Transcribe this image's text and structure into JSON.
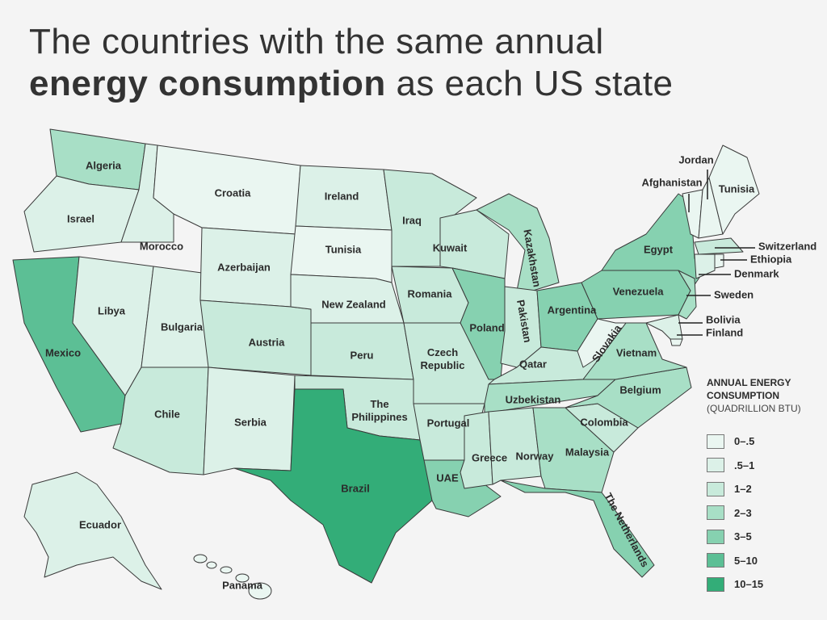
{
  "title": {
    "line1": "The countries with the same annual",
    "line2_bold": "energy consumption",
    "line2_rest": " as each US state"
  },
  "legend": {
    "title_line1": "ANNUAL ENERGY",
    "title_line2": "CONSUMPTION",
    "subtitle": "(QUADRILLION BTU)",
    "bins": [
      {
        "label": "0–.5",
        "color": "#eaf6f1"
      },
      {
        "label": ".5–1",
        "color": "#dcf1e8"
      },
      {
        "label": "1–2",
        "color": "#c8eadb"
      },
      {
        "label": "2–3",
        "color": "#a8dfc6"
      },
      {
        "label": "3–5",
        "color": "#86d1b0"
      },
      {
        "label": "5–10",
        "color": "#5cbf95"
      },
      {
        "label": "10–15",
        "color": "#33ad78"
      }
    ]
  },
  "regions": [
    {
      "country": "Algeria",
      "bin": 3
    },
    {
      "country": "Israel",
      "bin": 1
    },
    {
      "country": "Mexico",
      "bin": 5
    },
    {
      "country": "Morocco",
      "bin": 1
    },
    {
      "country": "Croatia",
      "bin": 0
    },
    {
      "country": "Libya",
      "bin": 1
    },
    {
      "country": "Bulgaria",
      "bin": 1
    },
    {
      "country": "Azerbaijan",
      "bin": 1
    },
    {
      "country": "Austria",
      "bin": 2
    },
    {
      "country": "Chile",
      "bin": 2
    },
    {
      "country": "Serbia",
      "bin": 1
    },
    {
      "country": "Ireland",
      "bin": 1
    },
    {
      "country": "Tunisia",
      "bin": 0
    },
    {
      "country": "New Zealand",
      "bin": 1
    },
    {
      "country": "Peru",
      "bin": 2
    },
    {
      "country": "The Philippines",
      "bin": 2
    },
    {
      "country": "Brazil",
      "bin": 6
    },
    {
      "country": "Iraq",
      "bin": 2
    },
    {
      "country": "Romania",
      "bin": 2
    },
    {
      "country": "Czech Republic",
      "bin": 2
    },
    {
      "country": "Portugal",
      "bin": 2
    },
    {
      "country": "UAE",
      "bin": 4
    },
    {
      "country": "Kuwait",
      "bin": 2
    },
    {
      "country": "Poland",
      "bin": 4
    },
    {
      "country": "Kazakhstan",
      "bin": 3
    },
    {
      "country": "Pakistan",
      "bin": 2
    },
    {
      "country": "Argentina",
      "bin": 4
    },
    {
      "country": "Qatar",
      "bin": 2
    },
    {
      "country": "Uzbekistan",
      "bin": 3
    },
    {
      "country": "Greece",
      "bin": 2
    },
    {
      "country": "Norway",
      "bin": 2
    },
    {
      "country": "Malaysia",
      "bin": 3
    },
    {
      "country": "The Netherlands",
      "bin": 4
    },
    {
      "country": "Colombia",
      "bin": 2
    },
    {
      "country": "Belgium",
      "bin": 3
    },
    {
      "country": "Vietnam",
      "bin": 3
    },
    {
      "country": "Slovakia",
      "bin": 0
    },
    {
      "country": "Venezuela",
      "bin": 4
    },
    {
      "country": "Egypt",
      "bin": 4
    },
    {
      "country": "Sweden",
      "bin": 3
    },
    {
      "country": "Bolivia",
      "bin": 1
    },
    {
      "country": "Finland",
      "bin": 0
    },
    {
      "country": "Afghanistan",
      "bin": 0
    },
    {
      "country": "Jordan",
      "bin": 0
    },
    {
      "country": "Tunisia",
      "bin": 0
    },
    {
      "country": "Switzerland",
      "bin": 2
    },
    {
      "country": "Denmark",
      "bin": 1
    },
    {
      "country": "Ethiopia",
      "bin": 0
    },
    {
      "country": "Ecuador",
      "bin": 1
    },
    {
      "country": "Panama",
      "bin": 0
    }
  ]
}
